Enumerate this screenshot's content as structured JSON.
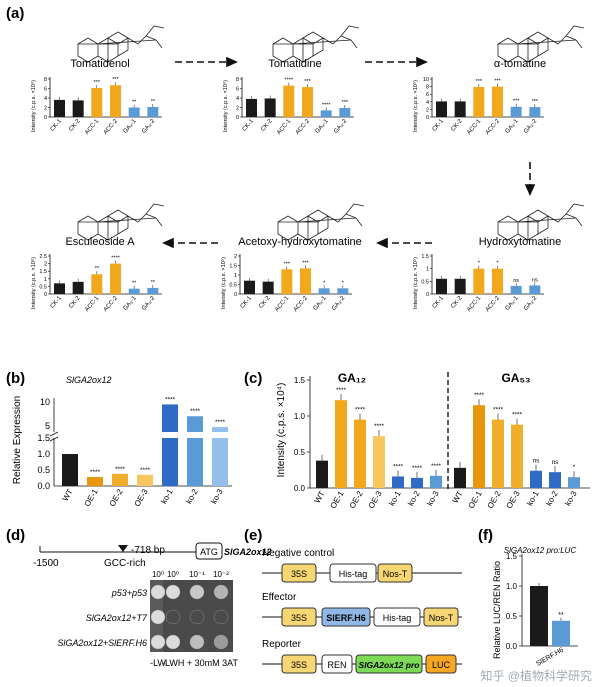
{
  "colors": {
    "ck": "#1a1a1a",
    "acc": "#f2a81d",
    "ga": "#5b9bd5",
    "oe_shades": [
      "#e8960c",
      "#f0ae2c",
      "#f6c75e"
    ],
    "ko_shades": [
      "#2f6bc4",
      "#5b9bd5",
      "#93c0ea"
    ],
    "box_yellow": "#f7d774",
    "box_blue": "#8fb8e6",
    "box_green": "#7ed957",
    "box_orange": "#f5a623"
  },
  "panel_labels": [
    "(a)",
    "(b)",
    "(c)",
    "(d)",
    "(e)",
    "(f)"
  ],
  "panel_a": {
    "ylabel": "Intensity (c.p.s. ×10⁵)",
    "categories": [
      "CK-1",
      "CK-2",
      "ACC-1",
      "ACC-2",
      "GA₃-1",
      "GA₃-2"
    ],
    "compounds": [
      {
        "name": "Tomatidenol",
        "values": [
          3.6,
          3.5,
          6.1,
          6.7,
          2.0,
          2.1
        ],
        "ymax": 8,
        "ticks": [
          0,
          2,
          4,
          6,
          8
        ],
        "sig": [
          "",
          "",
          "***",
          "***",
          "**",
          "**"
        ]
      },
      {
        "name": "Tomatidine",
        "values": [
          3.8,
          3.9,
          6.6,
          6.3,
          1.4,
          1.9
        ],
        "ymax": 8,
        "ticks": [
          0,
          2,
          4,
          6,
          8
        ],
        "sig": [
          "",
          "",
          "****",
          "***",
          "****",
          "***"
        ]
      },
      {
        "name": "α-tomatine",
        "values": [
          4.1,
          4.1,
          7.9,
          8.0,
          2.7,
          2.6
        ],
        "ymax": 10,
        "ticks": [
          0,
          2,
          4,
          6,
          8,
          10
        ],
        "sig": [
          "",
          "",
          "***",
          "***",
          "***",
          "***"
        ]
      },
      {
        "name": "Hydroxytomatine",
        "values": [
          0.6,
          0.6,
          1.0,
          1.0,
          0.32,
          0.34
        ],
        "ymax": 1.5,
        "ticks": [
          0,
          0.5,
          1.0,
          1.5
        ],
        "sig": [
          "",
          "",
          "*",
          "*",
          "ns",
          "ns"
        ]
      },
      {
        "name": "Acetoxy-hydroxytomatine",
        "values": [
          0.7,
          0.65,
          1.3,
          1.35,
          0.3,
          0.3
        ],
        "ymax": 2.0,
        "ticks": [
          0,
          0.5,
          1.0,
          1.5,
          2.0
        ],
        "sig": [
          "",
          "",
          "***",
          "***",
          "*",
          "*"
        ]
      },
      {
        "name": "Esculeoside A",
        "values": [
          0.7,
          0.8,
          1.3,
          2.0,
          0.35,
          0.4
        ],
        "ymax": 2.5,
        "ticks": [
          0,
          0.5,
          1.0,
          1.5,
          2.0,
          2.5
        ],
        "sig": [
          "",
          "",
          "**",
          "****",
          "**",
          "**"
        ]
      }
    ]
  },
  "chart_data": [
    {
      "type": "bar",
      "title": "Tomatidenol",
      "ylabel": "Intensity (c.p.s. ×10⁵)",
      "categories": [
        "CK-1",
        "CK-2",
        "ACC-1",
        "ACC-2",
        "GA₃-1",
        "GA₃-2"
      ],
      "values": [
        3.6,
        3.5,
        6.1,
        6.7,
        2.0,
        2.1
      ],
      "ylim": [
        0,
        8
      ]
    },
    {
      "type": "bar",
      "title": "Tomatidine",
      "ylabel": "Intensity (c.p.s. ×10⁵)",
      "categories": [
        "CK-1",
        "CK-2",
        "ACC-1",
        "ACC-2",
        "GA₃-1",
        "GA₃-2"
      ],
      "values": [
        3.8,
        3.9,
        6.6,
        6.3,
        1.4,
        1.9
      ],
      "ylim": [
        0,
        8
      ]
    },
    {
      "type": "bar",
      "title": "α-tomatine",
      "ylabel": "Intensity (c.p.s. ×10⁵)",
      "categories": [
        "CK-1",
        "CK-2",
        "ACC-1",
        "ACC-2",
        "GA₃-1",
        "GA₃-2"
      ],
      "values": [
        4.1,
        4.1,
        7.9,
        8.0,
        2.7,
        2.6
      ],
      "ylim": [
        0,
        10
      ]
    },
    {
      "type": "bar",
      "title": "Hydroxytomatine",
      "ylabel": "Intensity (c.p.s. ×10⁵)",
      "categories": [
        "CK-1",
        "CK-2",
        "ACC-1",
        "ACC-2",
        "GA₃-1",
        "GA₃-2"
      ],
      "values": [
        0.6,
        0.6,
        1.0,
        1.0,
        0.32,
        0.34
      ],
      "ylim": [
        0,
        1.5
      ]
    },
    {
      "type": "bar",
      "title": "Acetoxy-hydroxytomatine",
      "ylabel": "Intensity (c.p.s. ×10⁵)",
      "categories": [
        "CK-1",
        "CK-2",
        "ACC-1",
        "ACC-2",
        "GA₃-1",
        "GA₃-2"
      ],
      "values": [
        0.7,
        0.65,
        1.3,
        1.35,
        0.3,
        0.3
      ],
      "ylim": [
        0,
        2.0
      ]
    },
    {
      "type": "bar",
      "title": "Esculeoside A",
      "ylabel": "Intensity (c.p.s. ×10⁵)",
      "categories": [
        "CK-1",
        "CK-2",
        "ACC-1",
        "ACC-2",
        "GA₃-1",
        "GA₃-2"
      ],
      "values": [
        0.7,
        0.8,
        1.3,
        2.0,
        0.35,
        0.4
      ],
      "ylim": [
        0,
        2.5
      ]
    },
    {
      "type": "bar",
      "title": "SlGA2ox12",
      "ylabel": "Relative Expression",
      "categories": [
        "WT",
        "OE-1",
        "OE-2",
        "OE-3",
        "ko-1",
        "ko-2",
        "ko-3"
      ],
      "values": [
        1.0,
        0.28,
        0.38,
        0.35,
        9.6,
        7.2,
        5.0
      ]
    },
    {
      "type": "bar",
      "title": "GA12",
      "ylabel": "Intensity (c.p.s. ×10⁴)",
      "categories": [
        "WT",
        "OE-1",
        "OE-2",
        "OE-3",
        "ko-1",
        "ko-2",
        "ko-3"
      ],
      "values": [
        0.38,
        1.22,
        0.95,
        0.72,
        0.16,
        0.14,
        0.17
      ],
      "ylim": [
        0,
        1.5
      ]
    },
    {
      "type": "bar",
      "title": "GA53",
      "ylabel": "Intensity (c.p.s. ×10⁴)",
      "categories": [
        "WT",
        "OE-1",
        "OE-2",
        "OE-3",
        "ko-1",
        "ko-2",
        "ko-3"
      ],
      "values": [
        0.28,
        1.15,
        0.95,
        0.88,
        0.24,
        0.22,
        0.15
      ],
      "ylim": [
        0,
        1.5
      ]
    },
    {
      "type": "bar",
      "title": "SlGA2ox12 pro:LUC",
      "ylabel": "Relative LUC/REN Ratio",
      "categories": [
        "",
        "SlERF.H6"
      ],
      "values": [
        1.0,
        0.42
      ],
      "ylim": [
        0,
        1.5
      ]
    }
  ],
  "panel_b": {
    "gene": "SlGA2ox12",
    "ylabel": "Relative Expression",
    "categories": [
      "WT",
      "OE-1",
      "OE-2",
      "OE-3",
      "ko-1",
      "ko-2",
      "ko-3"
    ],
    "values": [
      1.0,
      0.28,
      0.38,
      0.35,
      9.6,
      7.2,
      5.0
    ],
    "sig": [
      "",
      "****",
      "****",
      "****",
      "****",
      "****",
      "****"
    ],
    "ticks_low": [
      "0.0",
      "0.5",
      "1.0",
      "1.5"
    ],
    "ticks_high": [
      "5",
      "10"
    ]
  },
  "panel_c": {
    "ylabel": "Intensity (c.p.s. ×10⁴)",
    "ticks": [
      0.0,
      0.5,
      1.0,
      1.5
    ],
    "groups": [
      {
        "name": "GA₁₂",
        "categories": [
          "WT",
          "OE-1",
          "OE-2",
          "OE-3",
          "ko-1",
          "ko-2",
          "ko-3"
        ],
        "values": [
          0.38,
          1.22,
          0.95,
          0.72,
          0.16,
          0.14,
          0.17
        ],
        "sig": [
          "",
          "****",
          "****",
          "****",
          "****",
          "****",
          "****"
        ]
      },
      {
        "name": "GA₅₃",
        "categories": [
          "WT",
          "OE-1",
          "OE-2",
          "OE-3",
          "ko-1",
          "ko-2",
          "ko-3"
        ],
        "values": [
          0.28,
          1.15,
          0.95,
          0.88,
          0.24,
          0.22,
          0.15
        ],
        "sig": [
          "",
          "****",
          "****",
          "****",
          "ns",
          "ns",
          "*"
        ]
      }
    ]
  },
  "panel_d": {
    "promoter_left": "-1500",
    "promoter_mark": "-718 bp",
    "atg": "ATG",
    "gene": "SlGA2ox12",
    "element": "GCC-rich",
    "dilutions_left": [
      "10⁰"
    ],
    "dilutions_right": [
      "10⁰",
      "10⁻¹",
      "10⁻²"
    ],
    "rows": [
      "p53+p53",
      "SlGA2ox12+T7",
      "SlGA2ox12+SlERF.H6"
    ],
    "media": [
      "-LW",
      "-LWH + 30mM 3AT"
    ]
  },
  "panel_e": {
    "negative_control": {
      "title": "Negative control",
      "boxes": [
        "35S",
        "His-tag",
        "Nos-T"
      ]
    },
    "effector": {
      "title": "Effector",
      "boxes": [
        "35S",
        "SlERF.H6",
        "His-tag",
        "Nos-T"
      ]
    },
    "reporter": {
      "title": "Reporter",
      "boxes": [
        "35S",
        "REN",
        "SlGA2ox12 pro",
        "LUC"
      ]
    }
  },
  "panel_f": {
    "title": "SlGA2ox12 pro:LUC",
    "ylabel": "Relative LUC/REN Ratio",
    "categories": [
      "",
      "SlERF.H6"
    ],
    "values": [
      1.0,
      0.42
    ],
    "ticks": [
      "0.0",
      "0.5",
      "1.0",
      "1.5"
    ],
    "sig": [
      "",
      "**"
    ]
  },
  "watermark": "知乎 @植物科学研究"
}
